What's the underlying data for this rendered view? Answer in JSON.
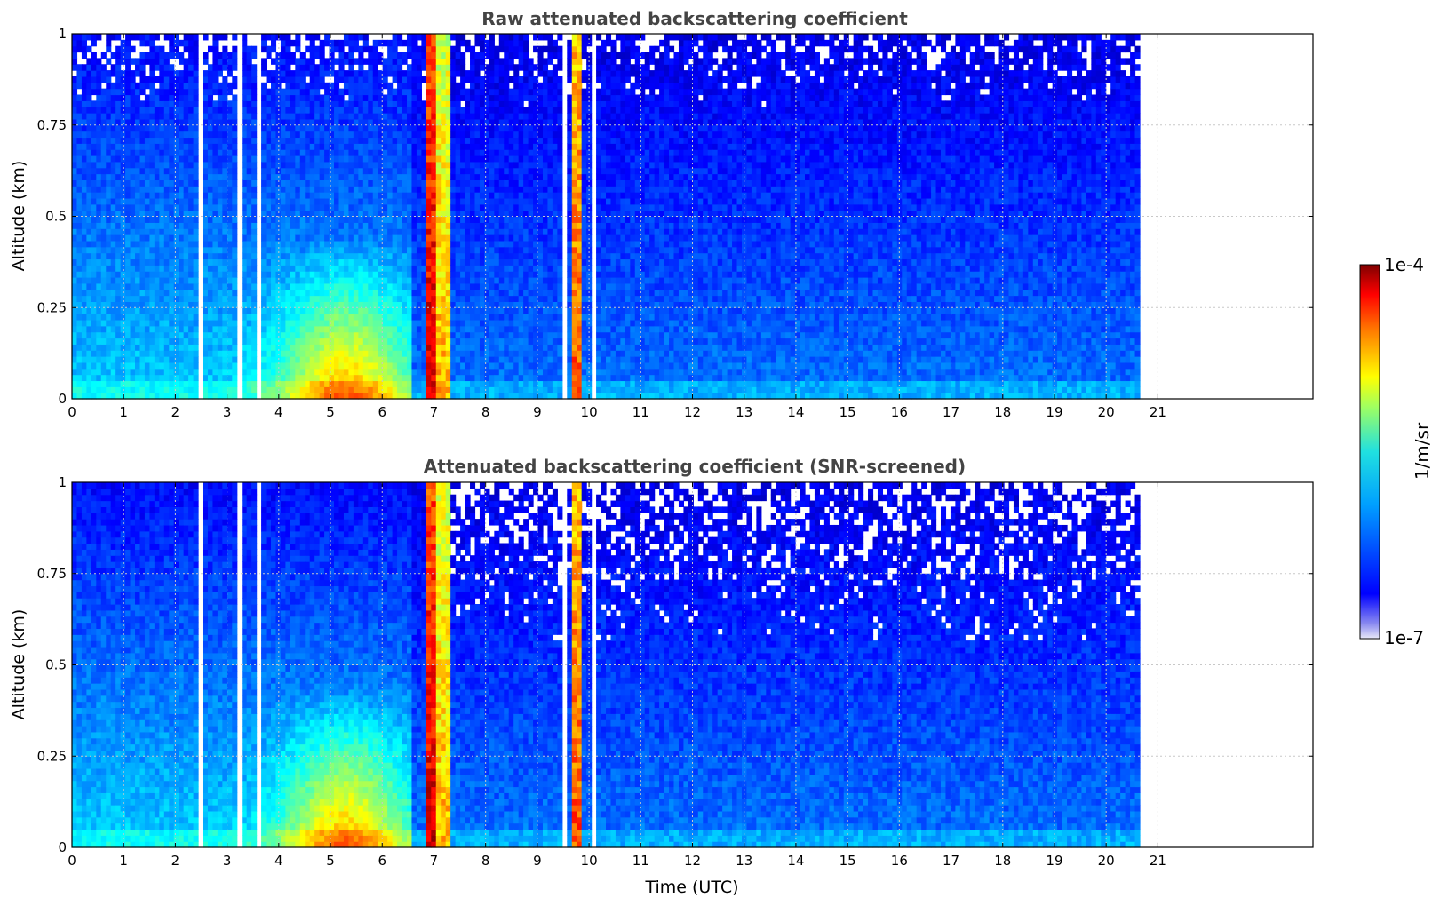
{
  "chart_data": [
    {
      "type": "heatmap",
      "title": "Raw attenuated backscattering coefficient",
      "ylabel": "Altitude (km)",
      "xlabel": "",
      "xlim": [
        0,
        24
      ],
      "ylim": [
        0,
        1
      ],
      "xticks": [
        "0",
        "1",
        "2",
        "3",
        "4",
        "5",
        "6",
        "7",
        "8",
        "9",
        "10",
        "11",
        "12",
        "13",
        "14",
        "15",
        "16",
        "17",
        "18",
        "19",
        "20",
        "21"
      ],
      "yticks": [
        "0",
        "0.25",
        "0.5",
        "0.75",
        "1"
      ],
      "grid": true,
      "data_end_time": 20.65,
      "screened": false,
      "features": [
        {
          "kind": "gap",
          "x": [
            2.45,
            2.5
          ]
        },
        {
          "kind": "gap",
          "x": [
            2.62,
            2.66
          ]
        },
        {
          "kind": "gap",
          "x": [
            3.16,
            3.26
          ]
        },
        {
          "kind": "gap",
          "x": [
            3.58,
            3.62
          ]
        },
        {
          "kind": "gap",
          "x": [
            3.72,
            3.8
          ]
        },
        {
          "kind": "gap",
          "x": [
            9.5,
            9.62
          ]
        },
        {
          "kind": "gap",
          "x": [
            9.85,
            9.9
          ]
        },
        {
          "kind": "gap",
          "x": [
            10.0,
            10.12
          ]
        },
        {
          "kind": "band",
          "x": [
            6.88,
            7.02
          ],
          "level": 0.92
        },
        {
          "kind": "band",
          "x": [
            7.05,
            7.3
          ],
          "level": 0.7
        },
        {
          "kind": "band",
          "x": [
            9.7,
            9.82
          ],
          "level": 0.8
        }
      ]
    },
    {
      "type": "heatmap",
      "title": "Attenuated backscattering coefficient (SNR-screened)",
      "ylabel": "Altitude (km)",
      "xlabel": "Time (UTC)",
      "xlim": [
        0,
        24
      ],
      "ylim": [
        0,
        1
      ],
      "xticks": [
        "0",
        "1",
        "2",
        "3",
        "4",
        "5",
        "6",
        "7",
        "8",
        "9",
        "10",
        "11",
        "12",
        "13",
        "14",
        "15",
        "16",
        "17",
        "18",
        "19",
        "20",
        "21"
      ],
      "yticks": [
        "0",
        "0.25",
        "0.5",
        "0.75",
        "1"
      ],
      "grid": true,
      "data_end_time": 20.65,
      "screened": true,
      "features": [
        {
          "kind": "gap",
          "x": [
            2.45,
            2.5
          ]
        },
        {
          "kind": "gap",
          "x": [
            2.62,
            2.66
          ]
        },
        {
          "kind": "gap",
          "x": [
            3.16,
            3.26
          ]
        },
        {
          "kind": "gap",
          "x": [
            3.58,
            3.62
          ]
        },
        {
          "kind": "gap",
          "x": [
            3.72,
            3.8
          ]
        },
        {
          "kind": "gap",
          "x": [
            9.5,
            9.62
          ]
        },
        {
          "kind": "gap",
          "x": [
            9.85,
            9.9
          ]
        },
        {
          "kind": "gap",
          "x": [
            10.0,
            10.12
          ]
        },
        {
          "kind": "band",
          "x": [
            6.88,
            7.02
          ],
          "level": 0.92
        },
        {
          "kind": "band",
          "x": [
            7.05,
            7.3
          ],
          "level": 0.7
        },
        {
          "kind": "band",
          "x": [
            9.7,
            9.82
          ],
          "level": 0.8
        }
      ]
    }
  ],
  "colorbar": {
    "min_label": "1e-7",
    "max_label": "1e-4",
    "label": "1/m/sr",
    "colormap": "jet"
  }
}
